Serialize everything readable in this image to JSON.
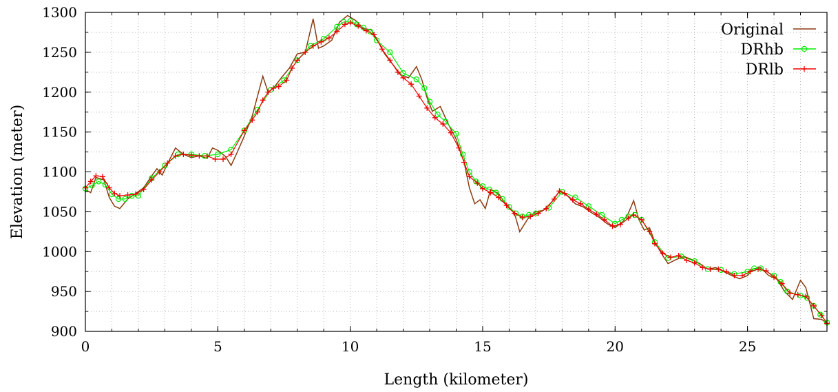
{
  "chart_data": {
    "type": "line",
    "xlabel": "Length (kilometer)",
    "ylabel": "Elevation (meter)",
    "xlim": [
      0,
      28
    ],
    "ylim": [
      900,
      1300
    ],
    "x_ticks": [
      0,
      5,
      10,
      15,
      20,
      25
    ],
    "y_ticks": [
      900,
      950,
      1000,
      1050,
      1100,
      1150,
      1200,
      1250,
      1300
    ],
    "grid": true,
    "legend_position": "top-right",
    "series": [
      {
        "name": "Original",
        "color": "#8b3a0f",
        "marker": "none",
        "points": [
          [
            0,
            1078
          ],
          [
            0.2,
            1074
          ],
          [
            0.4,
            1093
          ],
          [
            0.7,
            1090
          ],
          [
            0.9,
            1068
          ],
          [
            1.1,
            1057
          ],
          [
            1.3,
            1054
          ],
          [
            1.6,
            1066
          ],
          [
            1.9,
            1073
          ],
          [
            2.2,
            1080
          ],
          [
            2.5,
            1095
          ],
          [
            2.7,
            1104
          ],
          [
            2.9,
            1096
          ],
          [
            3.1,
            1110
          ],
          [
            3.4,
            1130
          ],
          [
            3.7,
            1122
          ],
          [
            4.0,
            1118
          ],
          [
            4.3,
            1120
          ],
          [
            4.6,
            1117
          ],
          [
            4.8,
            1130
          ],
          [
            5.0,
            1127
          ],
          [
            5.3,
            1119
          ],
          [
            5.5,
            1108
          ],
          [
            5.7,
            1122
          ],
          [
            6.0,
            1145
          ],
          [
            6.3,
            1170
          ],
          [
            6.5,
            1195
          ],
          [
            6.7,
            1220
          ],
          [
            6.9,
            1200
          ],
          [
            7.1,
            1205
          ],
          [
            7.4,
            1218
          ],
          [
            7.7,
            1230
          ],
          [
            8.0,
            1248
          ],
          [
            8.3,
            1250
          ],
          [
            8.6,
            1292
          ],
          [
            8.8,
            1255
          ],
          [
            9.0,
            1258
          ],
          [
            9.3,
            1265
          ],
          [
            9.6,
            1288
          ],
          [
            9.9,
            1296
          ],
          [
            10.2,
            1290
          ],
          [
            10.5,
            1280
          ],
          [
            10.8,
            1278
          ],
          [
            11.1,
            1261
          ],
          [
            11.3,
            1248
          ],
          [
            11.6,
            1235
          ],
          [
            11.9,
            1222
          ],
          [
            12.2,
            1218
          ],
          [
            12.5,
            1232
          ],
          [
            12.7,
            1216
          ],
          [
            12.9,
            1193
          ],
          [
            13.1,
            1176
          ],
          [
            13.4,
            1182
          ],
          [
            13.7,
            1160
          ],
          [
            14.0,
            1141
          ],
          [
            14.3,
            1112
          ],
          [
            14.5,
            1080
          ],
          [
            14.7,
            1060
          ],
          [
            14.9,
            1065
          ],
          [
            15.1,
            1054
          ],
          [
            15.3,
            1078
          ],
          [
            15.6,
            1073
          ],
          [
            15.9,
            1058
          ],
          [
            16.2,
            1048
          ],
          [
            16.4,
            1025
          ],
          [
            16.7,
            1041
          ],
          [
            17.0,
            1050
          ],
          [
            17.3,
            1052
          ],
          [
            17.6,
            1062
          ],
          [
            17.9,
            1076
          ],
          [
            18.2,
            1070
          ],
          [
            18.5,
            1060
          ],
          [
            18.8,
            1056
          ],
          [
            19.1,
            1049
          ],
          [
            19.4,
            1043
          ],
          [
            19.7,
            1035
          ],
          [
            20.0,
            1030
          ],
          [
            20.3,
            1038
          ],
          [
            20.5,
            1048
          ],
          [
            20.7,
            1064
          ],
          [
            20.9,
            1040
          ],
          [
            21.1,
            1027
          ],
          [
            21.3,
            1030
          ],
          [
            21.5,
            1012
          ],
          [
            21.8,
            995
          ],
          [
            22.0,
            985
          ],
          [
            22.3,
            990
          ],
          [
            22.6,
            994
          ],
          [
            22.9,
            990
          ],
          [
            23.2,
            985
          ],
          [
            23.5,
            978
          ],
          [
            23.8,
            980
          ],
          [
            24.1,
            975
          ],
          [
            24.4,
            970
          ],
          [
            24.7,
            966
          ],
          [
            25.0,
            970
          ],
          [
            25.2,
            978
          ],
          [
            25.5,
            980
          ],
          [
            25.8,
            970
          ],
          [
            26.1,
            966
          ],
          [
            26.4,
            950
          ],
          [
            26.7,
            940
          ],
          [
            27.0,
            964
          ],
          [
            27.2,
            955
          ],
          [
            27.5,
            916
          ],
          [
            27.8,
            915
          ],
          [
            28.0,
            910
          ]
        ]
      },
      {
        "name": "DRhb",
        "color": "#00ee00",
        "marker": "circle",
        "points": [
          [
            0,
            1079
          ],
          [
            0.25,
            1083
          ],
          [
            0.5,
            1088
          ],
          [
            0.75,
            1084
          ],
          [
            1.0,
            1072
          ],
          [
            1.25,
            1066
          ],
          [
            1.5,
            1066
          ],
          [
            1.75,
            1070
          ],
          [
            2.0,
            1070
          ],
          [
            2.5,
            1092
          ],
          [
            3.0,
            1108
          ],
          [
            3.5,
            1122
          ],
          [
            4.0,
            1122
          ],
          [
            4.5,
            1120
          ],
          [
            5.0,
            1122
          ],
          [
            5.5,
            1128
          ],
          [
            6.0,
            1152
          ],
          [
            6.5,
            1178
          ],
          [
            7.0,
            1203
          ],
          [
            7.5,
            1215
          ],
          [
            8.0,
            1240
          ],
          [
            8.5,
            1258
          ],
          [
            9.0,
            1267
          ],
          [
            9.5,
            1282
          ],
          [
            9.75,
            1288
          ],
          [
            10.0,
            1289
          ],
          [
            10.25,
            1285
          ],
          [
            10.5,
            1281
          ],
          [
            10.75,
            1276
          ],
          [
            11.0,
            1265
          ],
          [
            11.5,
            1250
          ],
          [
            12.0,
            1224
          ],
          [
            12.5,
            1216
          ],
          [
            12.8,
            1205
          ],
          [
            13.0,
            1188
          ],
          [
            13.3,
            1172
          ],
          [
            13.6,
            1163
          ],
          [
            14.0,
            1148
          ],
          [
            14.25,
            1122
          ],
          [
            14.5,
            1100
          ],
          [
            14.75,
            1088
          ],
          [
            15.0,
            1082
          ],
          [
            15.25,
            1078
          ],
          [
            15.5,
            1074
          ],
          [
            15.75,
            1066
          ],
          [
            16.0,
            1056
          ],
          [
            16.25,
            1048
          ],
          [
            16.5,
            1044
          ],
          [
            16.75,
            1046
          ],
          [
            17.0,
            1048
          ],
          [
            17.5,
            1055
          ],
          [
            18.0,
            1075
          ],
          [
            18.5,
            1068
          ],
          [
            19.0,
            1057
          ],
          [
            19.5,
            1046
          ],
          [
            20.0,
            1035
          ],
          [
            20.25,
            1040
          ],
          [
            20.5,
            1044
          ],
          [
            20.75,
            1046
          ],
          [
            21.0,
            1040
          ],
          [
            21.5,
            1012
          ],
          [
            22.0,
            992
          ],
          [
            22.5,
            994
          ],
          [
            23.0,
            988
          ],
          [
            23.5,
            978
          ],
          [
            24.0,
            977
          ],
          [
            24.5,
            972
          ],
          [
            25.0,
            975
          ],
          [
            25.25,
            979
          ],
          [
            25.5,
            979
          ],
          [
            26.0,
            970
          ],
          [
            26.25,
            962
          ],
          [
            26.5,
            950
          ],
          [
            27.0,
            945
          ],
          [
            27.25,
            942
          ],
          [
            27.5,
            932
          ],
          [
            27.75,
            921
          ],
          [
            28.0,
            911
          ]
        ]
      },
      {
        "name": "DRlb",
        "color": "#ee0000",
        "marker": "plus",
        "points": [
          [
            0,
            1080
          ],
          [
            0.2,
            1088
          ],
          [
            0.4,
            1095
          ],
          [
            0.65,
            1094
          ],
          [
            0.9,
            1080
          ],
          [
            1.1,
            1073
          ],
          [
            1.3,
            1070
          ],
          [
            1.6,
            1071
          ],
          [
            1.9,
            1072
          ],
          [
            2.2,
            1078
          ],
          [
            2.5,
            1090
          ],
          [
            2.8,
            1100
          ],
          [
            3.1,
            1111
          ],
          [
            3.4,
            1120
          ],
          [
            3.7,
            1122
          ],
          [
            4.0,
            1121
          ],
          [
            4.3,
            1120
          ],
          [
            4.6,
            1120
          ],
          [
            4.9,
            1116
          ],
          [
            5.2,
            1116
          ],
          [
            5.5,
            1122
          ],
          [
            6.0,
            1152
          ],
          [
            6.3,
            1165
          ],
          [
            6.5,
            1175
          ],
          [
            6.7,
            1190
          ],
          [
            6.9,
            1200
          ],
          [
            7.1,
            1205
          ],
          [
            7.3,
            1207
          ],
          [
            7.6,
            1215
          ],
          [
            7.8,
            1230
          ],
          [
            8.0,
            1240
          ],
          [
            8.3,
            1250
          ],
          [
            8.6,
            1258
          ],
          [
            8.9,
            1263
          ],
          [
            9.2,
            1268
          ],
          [
            9.5,
            1276
          ],
          [
            9.8,
            1285
          ],
          [
            10.0,
            1287
          ],
          [
            10.3,
            1283
          ],
          [
            10.6,
            1277
          ],
          [
            10.9,
            1272
          ],
          [
            11.2,
            1254
          ],
          [
            11.5,
            1240
          ],
          [
            11.8,
            1225
          ],
          [
            12.0,
            1218
          ],
          [
            12.3,
            1210
          ],
          [
            12.6,
            1195
          ],
          [
            12.9,
            1180
          ],
          [
            13.2,
            1168
          ],
          [
            13.5,
            1160
          ],
          [
            13.8,
            1149
          ],
          [
            14.1,
            1130
          ],
          [
            14.3,
            1112
          ],
          [
            14.5,
            1094
          ],
          [
            14.8,
            1086
          ],
          [
            15.0,
            1079
          ],
          [
            15.3,
            1074
          ],
          [
            15.6,
            1068
          ],
          [
            15.9,
            1058
          ],
          [
            16.2,
            1048
          ],
          [
            16.5,
            1043
          ],
          [
            16.8,
            1044
          ],
          [
            17.1,
            1048
          ],
          [
            17.4,
            1054
          ],
          [
            17.7,
            1066
          ],
          [
            17.9,
            1076
          ],
          [
            18.1,
            1073
          ],
          [
            18.4,
            1065
          ],
          [
            18.7,
            1060
          ],
          [
            19.0,
            1053
          ],
          [
            19.3,
            1047
          ],
          [
            19.6,
            1040
          ],
          [
            19.9,
            1032
          ],
          [
            20.2,
            1034
          ],
          [
            20.5,
            1042
          ],
          [
            20.7,
            1046
          ],
          [
            21.0,
            1040
          ],
          [
            21.3,
            1025
          ],
          [
            21.5,
            1010
          ],
          [
            21.8,
            998
          ],
          [
            22.1,
            993
          ],
          [
            22.4,
            995
          ],
          [
            22.7,
            989
          ],
          [
            23.0,
            986
          ],
          [
            23.3,
            980
          ],
          [
            23.6,
            978
          ],
          [
            23.9,
            978
          ],
          [
            24.2,
            975
          ],
          [
            24.5,
            970
          ],
          [
            24.8,
            970
          ],
          [
            25.1,
            975
          ],
          [
            25.4,
            978
          ],
          [
            25.7,
            976
          ],
          [
            26.0,
            968
          ],
          [
            26.3,
            960
          ],
          [
            26.6,
            948
          ],
          [
            26.9,
            946
          ],
          [
            27.2,
            944
          ],
          [
            27.5,
            932
          ],
          [
            27.8,
            920
          ],
          [
            28.0,
            910
          ]
        ]
      }
    ]
  }
}
